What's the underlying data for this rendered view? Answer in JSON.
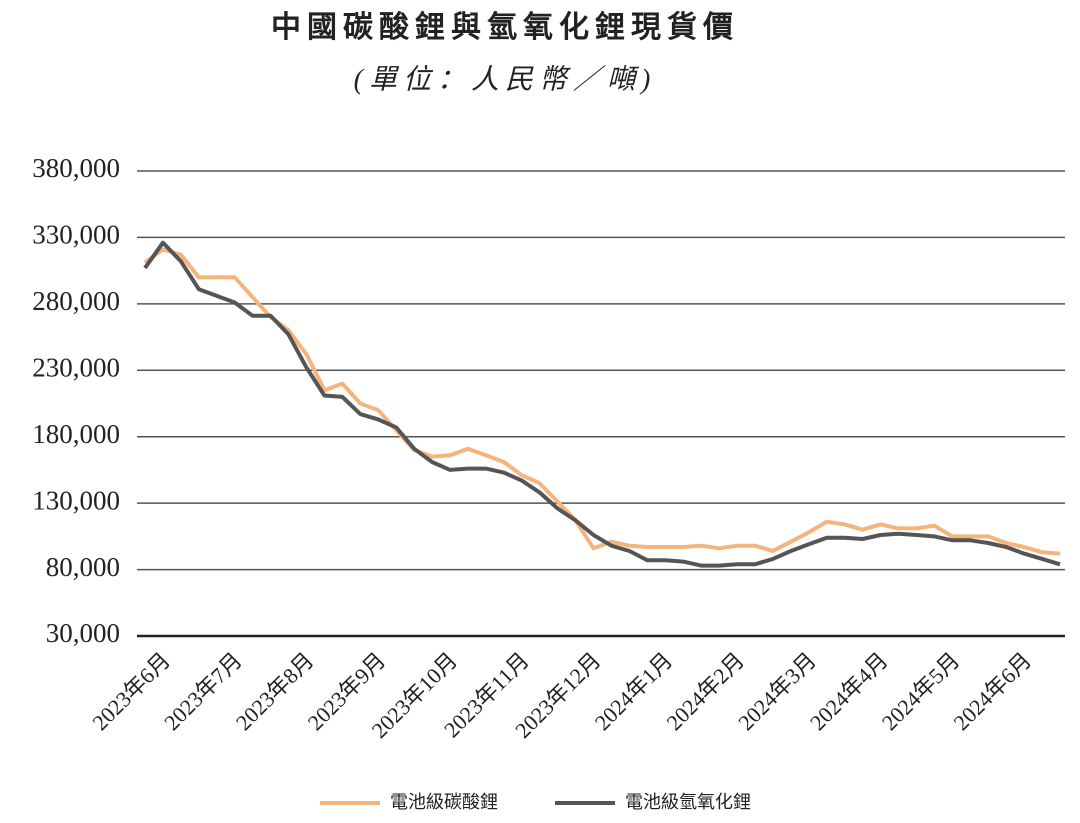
{
  "chart_data": {
    "type": "line",
    "title": "中國碳酸鋰與氫氧化鋰現貨價",
    "subtitle": "(單位：人民幣／噸)",
    "categories": [
      null,
      "2023年6月",
      null,
      null,
      null,
      "2023年7月",
      null,
      null,
      null,
      "2023年8月",
      null,
      null,
      null,
      "2023年9月",
      null,
      null,
      null,
      "2023年10月",
      null,
      null,
      null,
      "2023年11月",
      null,
      null,
      null,
      "2023年12月",
      null,
      null,
      null,
      "2024年1月",
      null,
      null,
      null,
      "2024年2月",
      null,
      null,
      null,
      "2024年3月",
      null,
      null,
      null,
      "2024年4月",
      null,
      null,
      null,
      "2024年5月",
      null,
      null,
      null,
      "2024年6月",
      null,
      null
    ],
    "series": [
      {
        "name": "電池級碳酸鋰",
        "color": "#f5b47c",
        "values": [
          311000,
          321000,
          317000,
          300000,
          300000,
          300000,
          285000,
          270000,
          260000,
          242000,
          215000,
          220000,
          205000,
          200000,
          185000,
          170000,
          165000,
          166000,
          171000,
          166000,
          161000,
          151000,
          145000,
          131000,
          117000,
          96000,
          101000,
          98000,
          97000,
          97000,
          97000,
          98000,
          96000,
          98000,
          98000,
          94000,
          101000,
          108000,
          116000,
          114000,
          110000,
          114000,
          111000,
          111000,
          113000,
          105000,
          105000,
          105000,
          100000,
          97000,
          93000,
          92000
        ]
      },
      {
        "name": "電池級氫氧化鋰",
        "color": "#555555",
        "values": [
          307000,
          326000,
          312000,
          291000,
          286000,
          281000,
          271000,
          271000,
          257000,
          232000,
          211000,
          210000,
          197000,
          193000,
          187000,
          171000,
          161000,
          155000,
          156000,
          156000,
          153000,
          147000,
          138000,
          126000,
          117000,
          106000,
          98000,
          94000,
          87000,
          87000,
          86000,
          83000,
          83000,
          84000,
          84000,
          88000,
          94000,
          99000,
          104000,
          104000,
          103000,
          106000,
          107000,
          106000,
          105000,
          102000,
          102000,
          100000,
          97000,
          92000,
          88000,
          84000
        ]
      }
    ],
    "ylim": [
      30000,
      380000
    ],
    "yticks": [
      {
        "value": 30000,
        "label": "30,000"
      },
      {
        "value": 80000,
        "label": "80,000"
      },
      {
        "value": 130000,
        "label": "130,000"
      },
      {
        "value": 180000,
        "label": "180,000"
      },
      {
        "value": 230000,
        "label": "230,000"
      },
      {
        "value": 280000,
        "label": "280,000"
      },
      {
        "value": 330000,
        "label": "330,000"
      },
      {
        "value": 380000,
        "label": "380,000"
      }
    ],
    "grid": true
  }
}
